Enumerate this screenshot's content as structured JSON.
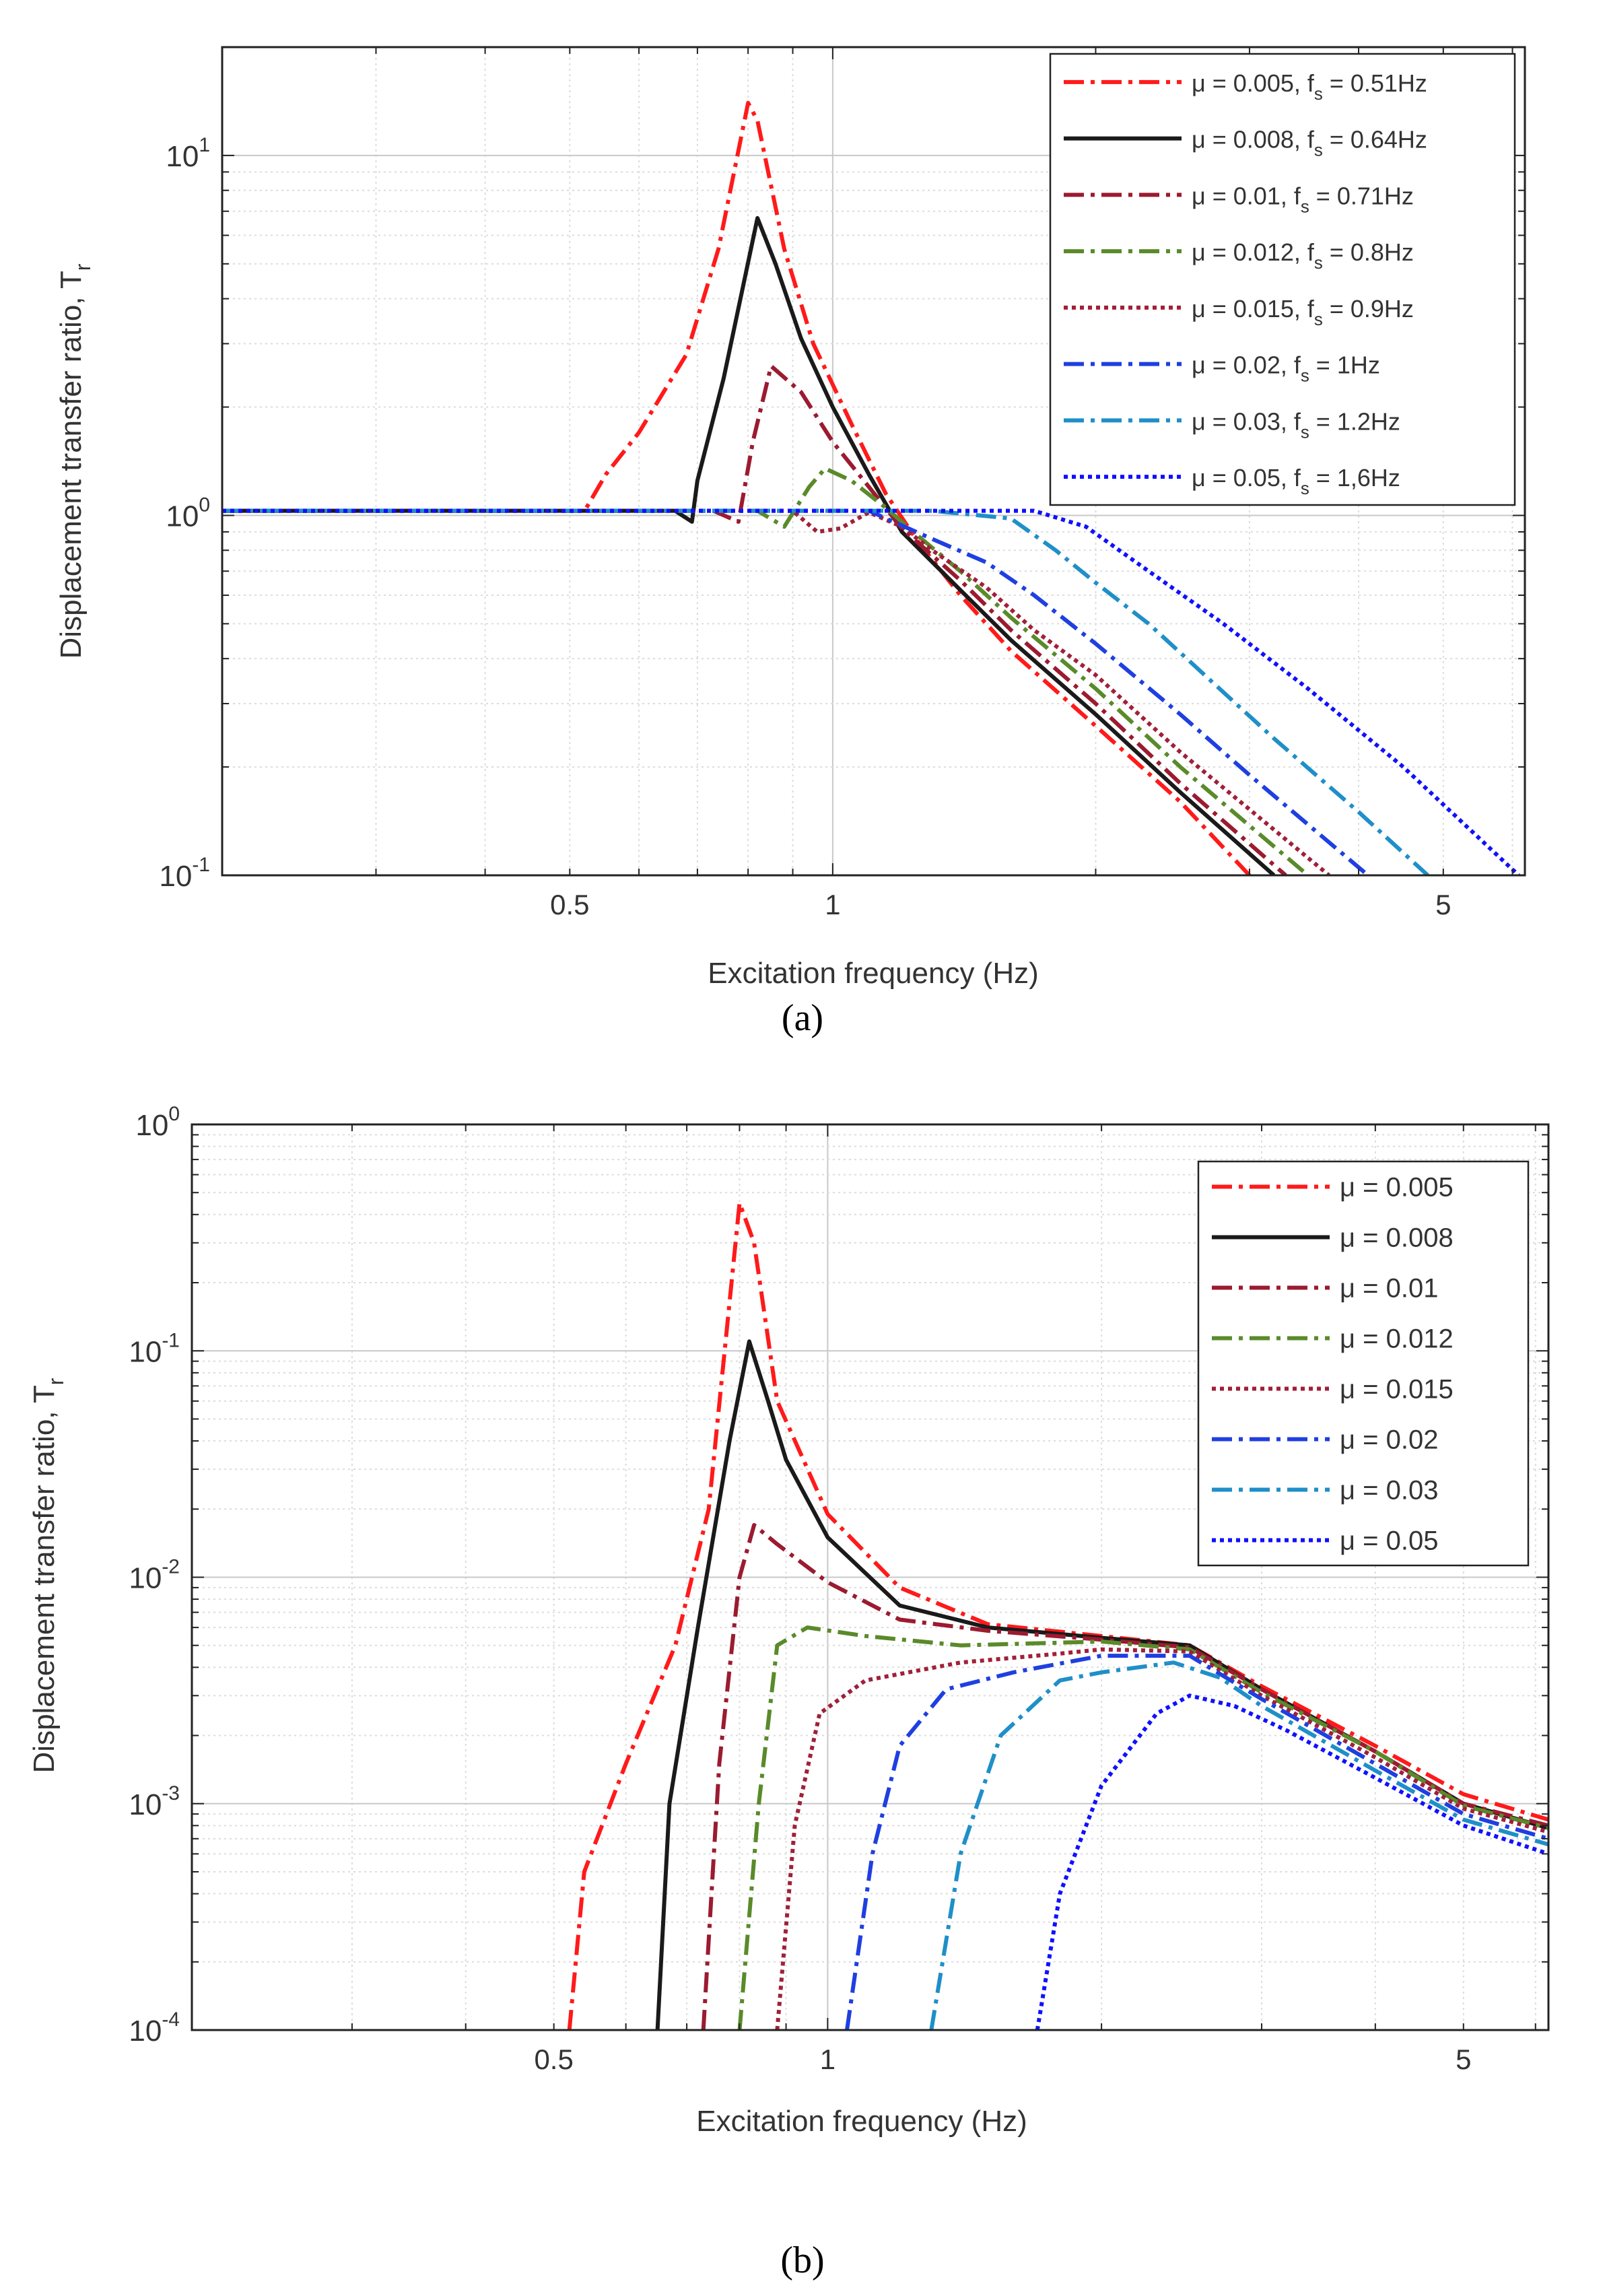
{
  "figure": {
    "panels": [
      "(a)",
      "(b)"
    ]
  },
  "chart_data": [
    {
      "id": "a",
      "type": "line",
      "scale": "log-log",
      "caption": "(a)",
      "title": "",
      "xlabel": "Excitation frequency  (Hz)",
      "ylabel": "Displacement transfer ratio, T",
      "ylabel_sub": "r",
      "xlim": [
        0.2,
        6.2
      ],
      "ylim": [
        0.1,
        20
      ],
      "grid": true,
      "legend_position": "top-right",
      "x_ticks": [
        {
          "v": 0.5,
          "label": "0.5"
        },
        {
          "v": 1,
          "label": "1"
        },
        {
          "v": 5,
          "label": "5"
        }
      ],
      "y_ticks": [
        {
          "v": 0.1,
          "base": "10",
          "exp": "-1"
        },
        {
          "v": 1,
          "base": "10",
          "exp": "0"
        },
        {
          "v": 10,
          "base": "10",
          "exp": "1"
        }
      ],
      "series": [
        {
          "label": "μ = 0.005,  f",
          "sub": "s",
          "label_end": " = 0.51Hz",
          "color": "#ff1a1a",
          "dash": "dashdot",
          "points": [
            [
              0.2,
              1.03
            ],
            [
              0.52,
              1.03
            ],
            [
              0.55,
              1.3
            ],
            [
              0.6,
              1.7
            ],
            [
              0.68,
              2.8
            ],
            [
              0.74,
              5.5
            ],
            [
              0.8,
              14
            ],
            [
              0.82,
              12.5
            ],
            [
              0.88,
              5.5
            ],
            [
              0.95,
              3.0
            ],
            [
              1.05,
              1.8
            ],
            [
              1.15,
              1.15
            ],
            [
              1.25,
              0.85
            ],
            [
              1.4,
              0.6
            ],
            [
              1.6,
              0.42
            ],
            [
              2.0,
              0.26
            ],
            [
              2.5,
              0.16
            ],
            [
              3.0,
              0.1
            ]
          ]
        },
        {
          "label": "μ = 0.008,  f",
          "sub": "s",
          "label_end": " = 0.64Hz",
          "color": "#1a1a1a",
          "dash": "solid",
          "points": [
            [
              0.2,
              1.03
            ],
            [
              0.66,
              1.03
            ],
            [
              0.69,
              0.96
            ],
            [
              0.7,
              1.25
            ],
            [
              0.75,
              2.4
            ],
            [
              0.82,
              6.7
            ],
            [
              0.86,
              5.0
            ],
            [
              0.92,
              3.1
            ],
            [
              1.0,
              2.0
            ],
            [
              1.1,
              1.3
            ],
            [
              1.2,
              0.9
            ],
            [
              1.4,
              0.62
            ],
            [
              1.6,
              0.45
            ],
            [
              2.0,
              0.28
            ],
            [
              2.5,
              0.17
            ],
            [
              3.2,
              0.1
            ]
          ]
        },
        {
          "label": "μ = 0.01,  f",
          "sub": "s",
          "label_end": " = 0.71Hz",
          "color": "#9b1b30",
          "dash": "dashdot",
          "points": [
            [
              0.2,
              1.03
            ],
            [
              0.73,
              1.03
            ],
            [
              0.78,
              0.96
            ],
            [
              0.81,
              1.6
            ],
            [
              0.85,
              2.6
            ],
            [
              0.92,
              2.2
            ],
            [
              1.0,
              1.6
            ],
            [
              1.1,
              1.2
            ],
            [
              1.2,
              0.92
            ],
            [
              1.4,
              0.66
            ],
            [
              1.6,
              0.48
            ],
            [
              2.0,
              0.3
            ],
            [
              2.5,
              0.18
            ],
            [
              3.3,
              0.1
            ]
          ]
        },
        {
          "label": "μ = 0.012,  f",
          "sub": "s",
          "label_end": " = 0.8Hz",
          "color": "#5a8a2a",
          "dash": "dashdot",
          "points": [
            [
              0.2,
              1.03
            ],
            [
              0.82,
              1.03
            ],
            [
              0.88,
              0.93
            ],
            [
              0.94,
              1.2
            ],
            [
              0.98,
              1.35
            ],
            [
              1.05,
              1.25
            ],
            [
              1.15,
              1.05
            ],
            [
              1.25,
              0.88
            ],
            [
              1.4,
              0.7
            ],
            [
              1.6,
              0.52
            ],
            [
              2.0,
              0.33
            ],
            [
              2.5,
              0.2
            ],
            [
              3.5,
              0.1
            ]
          ]
        },
        {
          "label": "μ = 0.015,  f",
          "sub": "s",
          "label_end": " = 0.9Hz",
          "color": "#a0203a",
          "dash": "dotted",
          "points": [
            [
              0.2,
              1.03
            ],
            [
              0.9,
              1.03
            ],
            [
              0.96,
              0.9
            ],
            [
              1.02,
              0.92
            ],
            [
              1.1,
              1.02
            ],
            [
              1.2,
              0.93
            ],
            [
              1.3,
              0.8
            ],
            [
              1.5,
              0.63
            ],
            [
              1.7,
              0.48
            ],
            [
              2.0,
              0.36
            ],
            [
              2.5,
              0.22
            ],
            [
              3.7,
              0.1
            ]
          ]
        },
        {
          "label": "μ = 0.02,  f",
          "sub": "s",
          "label_end": " = 1Hz",
          "color": "#1f3fe0",
          "dash": "dashdot",
          "points": [
            [
              0.2,
              1.03
            ],
            [
              1.1,
              1.03
            ],
            [
              1.3,
              0.86
            ],
            [
              1.5,
              0.74
            ],
            [
              1.7,
              0.6
            ],
            [
              2.0,
              0.44
            ],
            [
              2.5,
              0.28
            ],
            [
              3.0,
              0.19
            ],
            [
              4.1,
              0.1
            ]
          ]
        },
        {
          "label": "μ = 0.03,  f",
          "sub": "s",
          "label_end": " = 1.2Hz",
          "color": "#1f8fc8",
          "dash": "dashdot",
          "points": [
            [
              0.2,
              1.03
            ],
            [
              1.3,
              1.03
            ],
            [
              1.6,
              0.98
            ],
            [
              1.8,
              0.8
            ],
            [
              2.0,
              0.65
            ],
            [
              2.3,
              0.5
            ],
            [
              2.7,
              0.35
            ],
            [
              3.2,
              0.24
            ],
            [
              4.0,
              0.15
            ],
            [
              4.8,
              0.1
            ]
          ]
        },
        {
          "label": "μ = 0.05,  f",
          "sub": "s",
          "label_end": " = 1,6Hz",
          "color": "#1010ff",
          "dash": "dotted",
          "points": [
            [
              0.2,
              1.03
            ],
            [
              1.7,
              1.03
            ],
            [
              1.95,
              0.93
            ],
            [
              2.3,
              0.7
            ],
            [
              2.8,
              0.5
            ],
            [
              3.5,
              0.33
            ],
            [
              4.5,
              0.2
            ],
            [
              6.1,
              0.1
            ]
          ]
        }
      ]
    },
    {
      "id": "b",
      "type": "line",
      "scale": "log-log",
      "caption": "(b)",
      "title": "",
      "xlabel": "Excitation frequency   (Hz)",
      "ylabel": "Displacement transfer ratio, T",
      "ylabel_sub": "r",
      "xlim": [
        0.2,
        6.2
      ],
      "ylim": [
        0.0001,
        1
      ],
      "grid": true,
      "legend_position": "top-right",
      "x_ticks": [
        {
          "v": 0.5,
          "label": "0.5"
        },
        {
          "v": 1,
          "label": "1"
        },
        {
          "v": 5,
          "label": "5"
        }
      ],
      "y_ticks": [
        {
          "v": 0.0001,
          "base": "10",
          "exp": "-4"
        },
        {
          "v": 0.001,
          "base": "10",
          "exp": "-3"
        },
        {
          "v": 0.01,
          "base": "10",
          "exp": "-2"
        },
        {
          "v": 0.1,
          "base": "10",
          "exp": "-1"
        },
        {
          "v": 1,
          "base": "10",
          "exp": "0"
        }
      ],
      "series": [
        {
          "label": "μ = 0.005",
          "color": "#ff1a1a",
          "dash": "dashdot",
          "points": [
            [
              0.52,
              0.0001
            ],
            [
              0.54,
              0.0005
            ],
            [
              0.6,
              0.0015
            ],
            [
              0.68,
              0.005
            ],
            [
              0.74,
              0.02
            ],
            [
              0.8,
              0.45
            ],
            [
              0.83,
              0.3
            ],
            [
              0.88,
              0.06
            ],
            [
              1.0,
              0.019
            ],
            [
              1.2,
              0.009
            ],
            [
              1.5,
              0.0062
            ],
            [
              2.0,
              0.0055
            ],
            [
              2.5,
              0.005
            ],
            [
              3.0,
              0.0033
            ],
            [
              4.0,
              0.0018
            ],
            [
              5.0,
              0.0011
            ],
            [
              6.2,
              0.00085
            ]
          ]
        },
        {
          "label": "μ = 0.008",
          "color": "#1a1a1a",
          "dash": "solid",
          "points": [
            [
              0.65,
              0.0001
            ],
            [
              0.67,
              0.001
            ],
            [
              0.72,
              0.006
            ],
            [
              0.78,
              0.04
            ],
            [
              0.82,
              0.11
            ],
            [
              0.86,
              0.06
            ],
            [
              0.9,
              0.033
            ],
            [
              1.0,
              0.015
            ],
            [
              1.2,
              0.0075
            ],
            [
              1.5,
              0.006
            ],
            [
              2.0,
              0.0054
            ],
            [
              2.5,
              0.005
            ],
            [
              3.0,
              0.0032
            ],
            [
              4.0,
              0.0017
            ],
            [
              5.0,
              0.001
            ],
            [
              6.2,
              0.00078
            ]
          ]
        },
        {
          "label": "μ = 0.01",
          "color": "#9b1b30",
          "dash": "dashdot",
          "points": [
            [
              0.73,
              0.0001
            ],
            [
              0.76,
              0.0015
            ],
            [
              0.8,
              0.01
            ],
            [
              0.83,
              0.017
            ],
            [
              0.88,
              0.014
            ],
            [
              1.0,
              0.0095
            ],
            [
              1.2,
              0.0065
            ],
            [
              1.5,
              0.0058
            ],
            [
              2.0,
              0.0053
            ],
            [
              2.5,
              0.0049
            ],
            [
              3.0,
              0.0032
            ],
            [
              4.0,
              0.0017
            ],
            [
              5.0,
              0.001
            ],
            [
              6.2,
              0.0008
            ]
          ]
        },
        {
          "label": "μ = 0.012",
          "color": "#5a8a2a",
          "dash": "dashdot",
          "points": [
            [
              0.8,
              0.0001
            ],
            [
              0.84,
              0.001
            ],
            [
              0.88,
              0.005
            ],
            [
              0.95,
              0.006
            ],
            [
              1.1,
              0.0055
            ],
            [
              1.4,
              0.005
            ],
            [
              2.0,
              0.0052
            ],
            [
              2.5,
              0.0048
            ],
            [
              3.0,
              0.0031
            ],
            [
              4.0,
              0.0017
            ],
            [
              5.0,
              0.00098
            ],
            [
              6.2,
              0.00078
            ]
          ]
        },
        {
          "label": "μ = 0.015",
          "color": "#a0203a",
          "dash": "dotted",
          "points": [
            [
              0.88,
              0.0001
            ],
            [
              0.92,
              0.0008
            ],
            [
              0.98,
              0.0025
            ],
            [
              1.1,
              0.0035
            ],
            [
              1.4,
              0.0042
            ],
            [
              1.8,
              0.0046
            ],
            [
              2.0,
              0.0048
            ],
            [
              2.5,
              0.0047
            ],
            [
              3.0,
              0.003
            ],
            [
              4.0,
              0.0016
            ],
            [
              5.0,
              0.00095
            ],
            [
              6.2,
              0.00075
            ]
          ]
        },
        {
          "label": "μ = 0.02",
          "color": "#1f3fe0",
          "dash": "dashdot",
          "points": [
            [
              1.05,
              0.0001
            ],
            [
              1.12,
              0.0006
            ],
            [
              1.2,
              0.0018
            ],
            [
              1.35,
              0.0032
            ],
            [
              1.6,
              0.0038
            ],
            [
              2.0,
              0.0045
            ],
            [
              2.5,
              0.0045
            ],
            [
              3.0,
              0.0029
            ],
            [
              4.0,
              0.0015
            ],
            [
              5.0,
              0.0009
            ],
            [
              6.2,
              0.0007
            ]
          ]
        },
        {
          "label": "μ = 0.03",
          "color": "#1f8fc8",
          "dash": "dashdot",
          "points": [
            [
              1.3,
              0.0001
            ],
            [
              1.4,
              0.0006
            ],
            [
              1.55,
              0.002
            ],
            [
              1.8,
              0.0035
            ],
            [
              2.0,
              0.0038
            ],
            [
              2.4,
              0.0042
            ],
            [
              2.7,
              0.0036
            ],
            [
              3.0,
              0.0027
            ],
            [
              4.0,
              0.0014
            ],
            [
              5.0,
              0.00085
            ],
            [
              6.2,
              0.00066
            ]
          ]
        },
        {
          "label": "μ = 0.05",
          "color": "#1010ff",
          "dash": "dotted",
          "points": [
            [
              1.7,
              0.0001
            ],
            [
              1.8,
              0.0004
            ],
            [
              2.0,
              0.0012
            ],
            [
              2.3,
              0.0025
            ],
            [
              2.5,
              0.003
            ],
            [
              2.8,
              0.0027
            ],
            [
              3.2,
              0.0021
            ],
            [
              4.0,
              0.0013
            ],
            [
              5.0,
              0.0008
            ],
            [
              6.2,
              0.0006
            ]
          ]
        }
      ]
    }
  ]
}
